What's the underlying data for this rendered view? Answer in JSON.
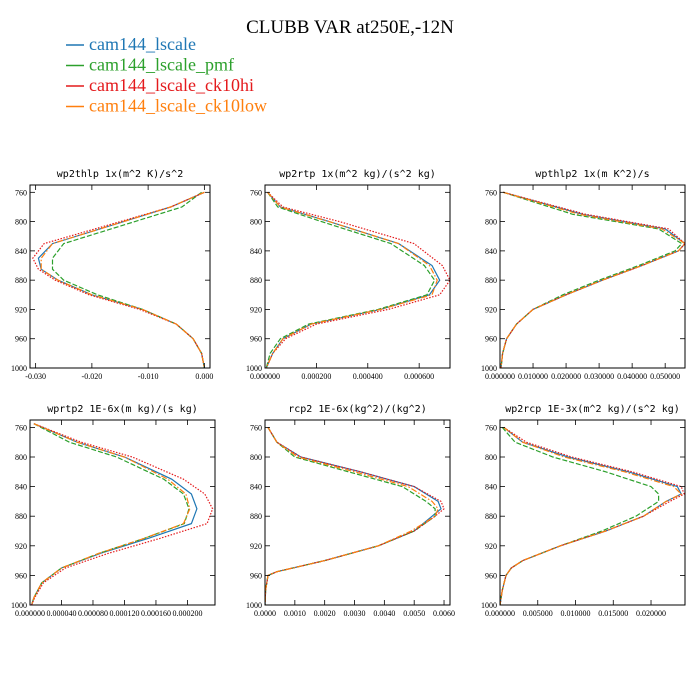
{
  "title": "CLUBB VAR at250E,-12N",
  "legend": [
    {
      "name": "cam144_lscale",
      "color": "#1f77b4",
      "dash": "solid"
    },
    {
      "name": "cam144_lscale_pmf",
      "color": "#2ca02c",
      "dash": "dash"
    },
    {
      "name": "cam144_lscale_ck10hi",
      "color": "#e41a1c",
      "dash": "dot"
    },
    {
      "name": "cam144_lscale_ck10low",
      "color": "#ff7f0e",
      "dash": "dashdot"
    }
  ],
  "chart_data": [
    {
      "type": "line",
      "title": "wp2thlp  1x(m^2 K)/s^2",
      "xlim": [
        -0.031,
        0.001
      ],
      "ylim": [
        1000,
        750
      ],
      "xticks": [
        -0.03,
        -0.02,
        -0.01,
        0.0
      ],
      "xtick_labels": [
        "-0.030",
        "-0.020",
        "-0.010",
        "0.000"
      ],
      "yticks": [
        760,
        800,
        840,
        880,
        920,
        960,
        1000
      ],
      "ytick_labels": [
        "760",
        "800",
        "840",
        "880",
        "920",
        "960",
        "1000"
      ],
      "series": [
        {
          "name": "cam144_lscale",
          "y": [
            760,
            780,
            830,
            850,
            865,
            880,
            900,
            920,
            940,
            960,
            980,
            1000
          ],
          "x": [
            0.0,
            -0.006,
            -0.027,
            -0.0295,
            -0.029,
            -0.026,
            -0.02,
            -0.011,
            -0.005,
            -0.002,
            -0.0005,
            0.0
          ]
        },
        {
          "name": "cam144_lscale_pmf",
          "y": [
            760,
            780,
            830,
            850,
            865,
            880,
            900,
            920,
            940,
            960,
            980,
            1000
          ],
          "x": [
            -0.0005,
            -0.004,
            -0.025,
            -0.027,
            -0.027,
            -0.025,
            -0.019,
            -0.011,
            -0.005,
            -0.002,
            -0.0005,
            0.0
          ]
        },
        {
          "name": "cam144_lscale_ck10hi",
          "y": [
            760,
            780,
            830,
            850,
            865,
            880,
            900,
            920,
            940,
            960,
            980,
            1000
          ],
          "x": [
            0.0,
            -0.006,
            -0.0285,
            -0.0305,
            -0.0295,
            -0.0265,
            -0.0205,
            -0.0115,
            -0.005,
            -0.002,
            -0.0005,
            0.0
          ]
        },
        {
          "name": "cam144_lscale_ck10low",
          "y": [
            760,
            780,
            830,
            850,
            865,
            880,
            900,
            920,
            940,
            960,
            980,
            1000
          ],
          "x": [
            0.0,
            -0.006,
            -0.027,
            -0.029,
            -0.029,
            -0.026,
            -0.02,
            -0.011,
            -0.005,
            -0.002,
            -0.0005,
            0.0
          ]
        }
      ]
    },
    {
      "type": "line",
      "title": "wp2rtp  1x(m^2 kg)/(s^2 kg)",
      "xlim": [
        0,
        0.00072
      ],
      "ylim": [
        1000,
        750
      ],
      "xticks": [
        0,
        0.0002,
        0.0004,
        0.0006
      ],
      "xtick_labels": [
        "0.000000",
        "0.000200",
        "0.000400",
        "0.000600"
      ],
      "yticks": [
        760,
        800,
        840,
        880,
        920,
        960,
        1000
      ],
      "ytick_labels": [
        "760",
        "800",
        "840",
        "880",
        "920",
        "960",
        "1000"
      ],
      "series": [
        {
          "name": "cam144_lscale",
          "y": [
            760,
            780,
            800,
            830,
            860,
            880,
            900,
            920,
            940,
            960,
            980,
            1000
          ],
          "x": [
            1e-05,
            6e-05,
            0.00025,
            0.00052,
            0.00065,
            0.00068,
            0.00064,
            0.00045,
            0.00018,
            7e-05,
            3e-05,
            5e-06
          ]
        },
        {
          "name": "cam144_lscale_pmf",
          "y": [
            760,
            780,
            800,
            830,
            860,
            880,
            900,
            920,
            940,
            960,
            980,
            1000
          ],
          "x": [
            1e-05,
            5e-05,
            0.00022,
            0.00049,
            0.00062,
            0.00066,
            0.00063,
            0.00044,
            0.00017,
            6e-05,
            2e-05,
            5e-06
          ]
        },
        {
          "name": "cam144_lscale_ck10hi",
          "y": [
            760,
            780,
            800,
            830,
            860,
            880,
            900,
            920,
            940,
            960,
            980,
            1000
          ],
          "x": [
            1e-05,
            7e-05,
            0.00029,
            0.00058,
            0.00069,
            0.00072,
            0.00068,
            0.00048,
            0.0002,
            8e-05,
            3e-05,
            5e-06
          ]
        },
        {
          "name": "cam144_lscale_ck10low",
          "y": [
            760,
            780,
            800,
            830,
            860,
            880,
            900,
            920,
            940,
            960,
            980,
            1000
          ],
          "x": [
            1e-05,
            6e-05,
            0.00025,
            0.00052,
            0.00064,
            0.00067,
            0.00065,
            0.00045,
            0.00018,
            7e-05,
            3e-05,
            5e-06
          ]
        }
      ]
    },
    {
      "type": "line",
      "title": "wpthlp2  1x(m K^2)/s",
      "xlim": [
        0,
        0.056
      ],
      "ylim": [
        1000,
        750
      ],
      "xticks": [
        0,
        0.01,
        0.02,
        0.03,
        0.04,
        0.05
      ],
      "xtick_labels": [
        "0.000000",
        "0.010000",
        "0.020000",
        "0.030000",
        "0.040000",
        "0.050000"
      ],
      "yticks": [
        760,
        800,
        840,
        880,
        920,
        960,
        1000
      ],
      "ytick_labels": [
        "760",
        "800",
        "840",
        "880",
        "920",
        "960",
        "1000"
      ],
      "series": [
        {
          "name": "cam144_lscale",
          "y": [
            760,
            790,
            810,
            830,
            840,
            860,
            880,
            900,
            920,
            940,
            960,
            980,
            1000
          ],
          "x": [
            0.001,
            0.025,
            0.05,
            0.056,
            0.054,
            0.043,
            0.031,
            0.02,
            0.01,
            0.005,
            0.002,
            0.0008,
            0.0003
          ]
        },
        {
          "name": "cam144_lscale_pmf",
          "y": [
            760,
            790,
            810,
            830,
            840,
            860,
            880,
            900,
            920,
            940,
            960,
            980,
            1000
          ],
          "x": [
            0.001,
            0.022,
            0.048,
            0.055,
            0.053,
            0.042,
            0.03,
            0.019,
            0.01,
            0.005,
            0.002,
            0.0008,
            0.0003
          ]
        },
        {
          "name": "cam144_lscale_ck10hi",
          "y": [
            760,
            790,
            810,
            830,
            840,
            860,
            880,
            900,
            920,
            940,
            960,
            980,
            1000
          ],
          "x": [
            0.001,
            0.026,
            0.051,
            0.056,
            0.054,
            0.043,
            0.031,
            0.02,
            0.01,
            0.005,
            0.002,
            0.0008,
            0.0003
          ]
        },
        {
          "name": "cam144_lscale_ck10low",
          "y": [
            760,
            790,
            810,
            830,
            840,
            860,
            880,
            900,
            920,
            940,
            960,
            980,
            1000
          ],
          "x": [
            0.001,
            0.024,
            0.049,
            0.056,
            0.054,
            0.043,
            0.031,
            0.02,
            0.01,
            0.005,
            0.002,
            0.0008,
            0.0003
          ]
        }
      ]
    },
    {
      "type": "line",
      "title": "wprtp2  1E-6x(m kg)/(s kg)",
      "xlim": [
        0,
        0.000235
      ],
      "ylim": [
        1000,
        750
      ],
      "xticks": [
        0,
        4e-05,
        8e-05,
        0.00012,
        0.00016,
        0.0002
      ],
      "xtick_labels": [
        "0.000000",
        "0.000040",
        "0.000080",
        "0.000120",
        "0.000160",
        "0.000200"
      ],
      "yticks": [
        760,
        800,
        840,
        880,
        920,
        960,
        1000
      ],
      "ytick_labels": [
        "760",
        "800",
        "840",
        "880",
        "920",
        "960",
        "1000"
      ],
      "series": [
        {
          "name": "cam144_lscale",
          "y": [
            755,
            780,
            800,
            830,
            850,
            870,
            890,
            910,
            930,
            950,
            970,
            990,
            1000
          ],
          "x": [
            5e-06,
            6e-05,
            0.00012,
            0.00018,
            0.000205,
            0.000212,
            0.000205,
            0.00015,
            9e-05,
            4e-05,
            1.5e-05,
            5e-06,
            2e-06
          ]
        },
        {
          "name": "cam144_lscale_pmf",
          "y": [
            755,
            780,
            800,
            830,
            850,
            870,
            890,
            910,
            930,
            950,
            970,
            990,
            1000
          ],
          "x": [
            5e-06,
            5e-05,
            0.00011,
            0.00017,
            0.000195,
            0.000202,
            0.000196,
            0.000145,
            8.8e-05,
            4e-05,
            1.5e-05,
            5e-06,
            2e-06
          ]
        },
        {
          "name": "cam144_lscale_ck10hi",
          "y": [
            755,
            780,
            800,
            830,
            850,
            870,
            890,
            910,
            930,
            950,
            970,
            990,
            1000
          ],
          "x": [
            5e-06,
            6.5e-05,
            0.00013,
            0.000195,
            0.000222,
            0.000232,
            0.000225,
            0.000165,
            0.0001,
            4.5e-05,
            1.7e-05,
            6e-06,
            2e-06
          ]
        },
        {
          "name": "cam144_lscale_ck10low",
          "y": [
            755,
            780,
            800,
            830,
            850,
            870,
            890,
            910,
            930,
            950,
            970,
            990,
            1000
          ],
          "x": [
            5e-06,
            6e-05,
            0.00012,
            0.000175,
            0.000198,
            0.000203,
            0.000195,
            0.000145,
            8.8e-05,
            4e-05,
            1.5e-05,
            5e-06,
            2e-06
          ]
        }
      ]
    },
    {
      "type": "line",
      "title": "rcp2  1E-6x(kg^2)/(kg^2)",
      "xlim": [
        0,
        0.0062
      ],
      "ylim": [
        1000,
        750
      ],
      "xticks": [
        0,
        0.001,
        0.002,
        0.003,
        0.004,
        0.005,
        0.006
      ],
      "xtick_labels": [
        "0.0000",
        "0.0010",
        "0.0020",
        "0.0030",
        "0.0040",
        "0.0050",
        "0.0060"
      ],
      "yticks": [
        760,
        800,
        840,
        880,
        920,
        960,
        1000
      ],
      "ytick_labels": [
        "760",
        "800",
        "840",
        "880",
        "920",
        "960",
        "1000"
      ],
      "series": [
        {
          "name": "cam144_lscale",
          "y": [
            760,
            780,
            800,
            820,
            840,
            860,
            870,
            880,
            900,
            920,
            940,
            955,
            960,
            980,
            1000
          ],
          "x": [
            0.0001,
            0.0004,
            0.0012,
            0.0032,
            0.005,
            0.0058,
            0.0059,
            0.0056,
            0.005,
            0.0038,
            0.002,
            0.0004,
            0.0001,
            2e-05,
            0.0
          ]
        },
        {
          "name": "cam144_lscale_pmf",
          "y": [
            760,
            780,
            800,
            820,
            840,
            860,
            870,
            880,
            900,
            920,
            940,
            955,
            960,
            980,
            1000
          ],
          "x": [
            0.0001,
            0.0004,
            0.001,
            0.0028,
            0.0046,
            0.0054,
            0.0057,
            0.0057,
            0.005,
            0.0038,
            0.002,
            0.0004,
            0.0001,
            2e-05,
            0.0
          ]
        },
        {
          "name": "cam144_lscale_ck10hi",
          "y": [
            760,
            780,
            800,
            820,
            840,
            860,
            870,
            880,
            900,
            920,
            940,
            955,
            960,
            980,
            1000
          ],
          "x": [
            0.0001,
            0.0004,
            0.0012,
            0.0032,
            0.005,
            0.0059,
            0.006,
            0.0057,
            0.005,
            0.0038,
            0.002,
            0.0004,
            0.0001,
            2e-05,
            0.0
          ]
        },
        {
          "name": "cam144_lscale_ck10low",
          "y": [
            760,
            780,
            800,
            820,
            840,
            860,
            870,
            880,
            900,
            920,
            940,
            955,
            960,
            980,
            1000
          ],
          "x": [
            0.0001,
            0.0004,
            0.0011,
            0.003,
            0.0048,
            0.0056,
            0.0058,
            0.0057,
            0.0049,
            0.0038,
            0.002,
            0.0004,
            0.0001,
            2e-05,
            0.0
          ]
        }
      ]
    },
    {
      "type": "line",
      "title": "wp2rcp  1E-3x(m^2 kg)/(s^2 kg)",
      "xlim": [
        0,
        0.0245
      ],
      "ylim": [
        1000,
        750
      ],
      "xticks": [
        0,
        0.005,
        0.01,
        0.015,
        0.02
      ],
      "xtick_labels": [
        "0.000000",
        "0.005000",
        "0.010000",
        "0.015000",
        "0.020000"
      ],
      "yticks": [
        760,
        800,
        840,
        880,
        920,
        960,
        1000
      ],
      "ytick_labels": [
        "760",
        "800",
        "840",
        "880",
        "920",
        "960",
        "1000"
      ],
      "series": [
        {
          "name": "cam144_lscale",
          "y": [
            760,
            780,
            800,
            820,
            840,
            850,
            860,
            880,
            900,
            920,
            940,
            950,
            960,
            980,
            1000
          ],
          "x": [
            0.0005,
            0.003,
            0.009,
            0.017,
            0.0235,
            0.024,
            0.022,
            0.019,
            0.014,
            0.008,
            0.003,
            0.0015,
            0.0008,
            0.0003,
            0.0
          ]
        },
        {
          "name": "cam144_lscale_pmf",
          "y": [
            760,
            780,
            800,
            820,
            840,
            850,
            860,
            880,
            900,
            920,
            940,
            950,
            960,
            980,
            1000
          ],
          "x": [
            0.0003,
            0.002,
            0.007,
            0.014,
            0.02,
            0.021,
            0.021,
            0.018,
            0.0135,
            0.008,
            0.003,
            0.0015,
            0.0008,
            0.0003,
            0.0
          ]
        },
        {
          "name": "cam144_lscale_ck10hi",
          "y": [
            760,
            780,
            800,
            820,
            840,
            850,
            860,
            880,
            900,
            920,
            940,
            950,
            960,
            980,
            1000
          ],
          "x": [
            0.0005,
            0.0035,
            0.0095,
            0.0175,
            0.024,
            0.0244,
            0.0225,
            0.019,
            0.014,
            0.008,
            0.003,
            0.0015,
            0.0008,
            0.0003,
            0.0
          ]
        },
        {
          "name": "cam144_lscale_ck10low",
          "y": [
            760,
            780,
            800,
            820,
            840,
            850,
            860,
            880,
            900,
            920,
            940,
            950,
            960,
            980,
            1000
          ],
          "x": [
            0.0005,
            0.003,
            0.0085,
            0.0165,
            0.023,
            0.024,
            0.022,
            0.019,
            0.014,
            0.008,
            0.003,
            0.0015,
            0.0008,
            0.0003,
            0.0
          ]
        }
      ]
    }
  ]
}
